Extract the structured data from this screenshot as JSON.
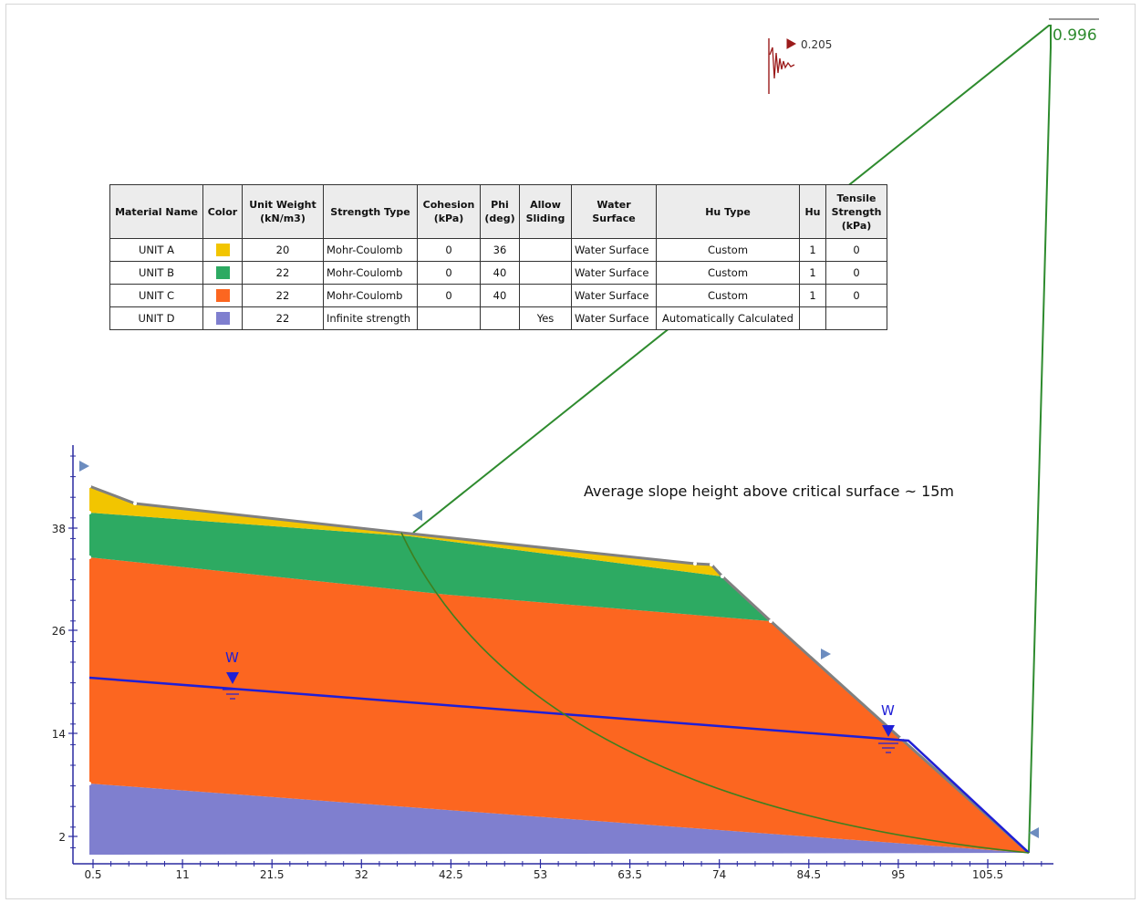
{
  "annotation": "Average slope height above critical surface ~ 15m",
  "factor_of_safety": "0.996",
  "seismic": {
    "value": "0.205",
    "arrow_color": "#9b1b1b"
  },
  "water_label": "W",
  "axis": {
    "x_ticks": [
      "0.5",
      "11",
      "21.5",
      "32",
      "42.5",
      "53",
      "63.5",
      "74",
      "84.5",
      "95",
      "105.5"
    ],
    "y_ticks": [
      "38",
      "26",
      "14",
      "2"
    ]
  },
  "table": {
    "headers": [
      "Material Name",
      "Color",
      "Unit Weight\n(kN/m3)",
      "Strength Type",
      "Cohesion\n(kPa)",
      "Phi\n(deg)",
      "Allow\nSliding",
      "Water Surface",
      "Hu Type",
      "Hu",
      "Tensile\nStrength\n(kPa)"
    ],
    "rows": [
      {
        "name": "UNIT A",
        "color": "#f2c500",
        "unit_weight": "20",
        "strength_type": "Mohr-Coulomb",
        "cohesion": "0",
        "phi": "36",
        "allow_sliding": "",
        "water_surface": "Water Surface",
        "hu_type": "Custom",
        "hu": "1",
        "tensile": "0"
      },
      {
        "name": "UNIT B",
        "color": "#2daa62",
        "unit_weight": "22",
        "strength_type": "Mohr-Coulomb",
        "cohesion": "0",
        "phi": "40",
        "allow_sliding": "",
        "water_surface": "Water Surface",
        "hu_type": "Custom",
        "hu": "1",
        "tensile": "0"
      },
      {
        "name": "UNIT C",
        "color": "#fc6620",
        "unit_weight": "22",
        "strength_type": "Mohr-Coulomb",
        "cohesion": "0",
        "phi": "40",
        "allow_sliding": "",
        "water_surface": "Water Surface",
        "hu_type": "Custom",
        "hu": "1",
        "tensile": "0"
      },
      {
        "name": "UNIT D",
        "color": "#7f7fcf",
        "unit_weight": "22",
        "strength_type": "Infinite strength",
        "cohesion": "",
        "phi": "",
        "allow_sliding": "Yes",
        "water_surface": "Water Surface",
        "hu_type": "Automatically Calculated",
        "hu": "",
        "tensile": ""
      }
    ]
  },
  "colors": {
    "water_line": "#1f1fd6",
    "slip_surface": "#3f7f1f",
    "fs_line": "#2e8b2e",
    "surface_outline": "#808080",
    "axis": "#2a2aa0",
    "marker": "#6c8cbf"
  }
}
